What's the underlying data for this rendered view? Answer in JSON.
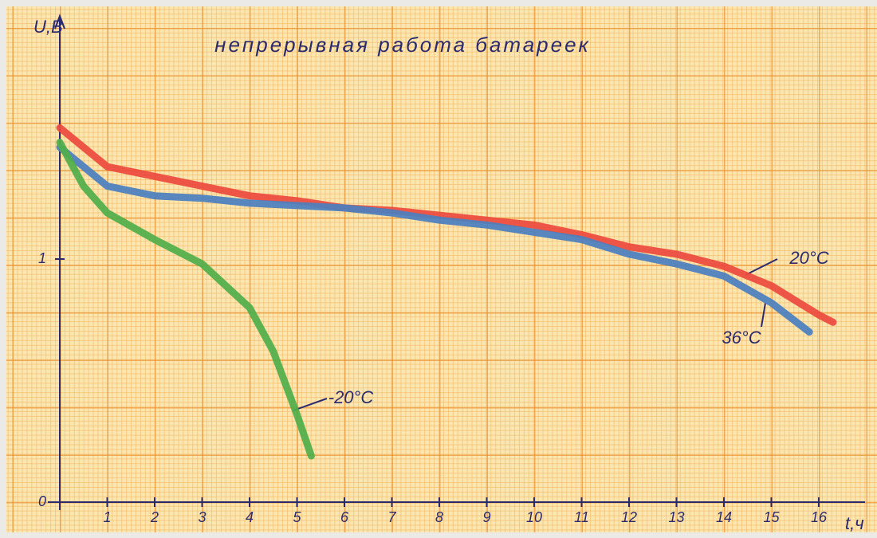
{
  "chart_data": {
    "type": "line",
    "title": "непрерывная работа батареек",
    "x_label": "t,ч",
    "y_label": "U,B",
    "xlim": [
      0,
      17
    ],
    "ylim": [
      0,
      1.95
    ],
    "xticks": [
      1,
      2,
      3,
      4,
      5,
      6,
      7,
      8,
      9,
      10,
      11,
      12,
      13,
      14,
      15,
      16
    ],
    "yticks": [
      0,
      1
    ],
    "series": [
      {
        "name": "20°C",
        "color": "#ec4a3e",
        "x": [
          0,
          1,
          2,
          3,
          4,
          5,
          6,
          7,
          8,
          9,
          10,
          11,
          12,
          13,
          14,
          15,
          16,
          16.3
        ],
        "values": [
          1.54,
          1.38,
          1.34,
          1.3,
          1.26,
          1.24,
          1.21,
          1.2,
          1.18,
          1.16,
          1.14,
          1.1,
          1.05,
          1.02,
          0.97,
          0.89,
          0.77,
          0.74
        ]
      },
      {
        "name": "36°C",
        "color": "#4a7fc0",
        "x": [
          0,
          1,
          2,
          3,
          4,
          5,
          6,
          7,
          8,
          9,
          10,
          11,
          12,
          13,
          14,
          15,
          15.8
        ],
        "values": [
          1.46,
          1.3,
          1.26,
          1.25,
          1.23,
          1.22,
          1.21,
          1.19,
          1.16,
          1.14,
          1.11,
          1.08,
          1.02,
          0.98,
          0.93,
          0.82,
          0.7
        ]
      },
      {
        "name": "-20°C",
        "color": "#4fae4a",
        "x": [
          0,
          0.5,
          1,
          2,
          3,
          4,
          4.5,
          5,
          5.3
        ],
        "values": [
          1.48,
          1.3,
          1.19,
          1.08,
          0.98,
          0.8,
          0.62,
          0.36,
          0.19
        ]
      }
    ]
  }
}
